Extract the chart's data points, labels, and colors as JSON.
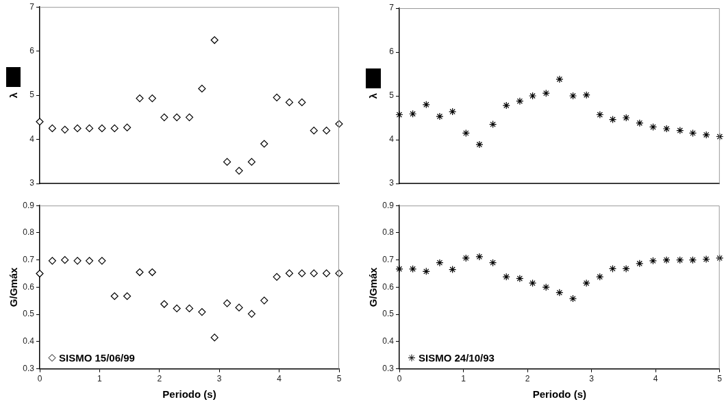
{
  "chart_data": [
    {
      "type": "scatter",
      "ylabel": "λ",
      "xlim": [
        0,
        5
      ],
      "xticks": [
        0,
        1,
        2,
        3,
        4,
        5
      ],
      "ylim": [
        3,
        7
      ],
      "yticks": [
        3,
        4,
        5,
        6,
        7
      ],
      "tick_labels": "y",
      "grid": false,
      "legend": false,
      "marker": "diamond",
      "series": [
        {
          "color": "#000000",
          "x": [
            0,
            0.21,
            0.42,
            0.63,
            0.83,
            1.04,
            1.25,
            1.46,
            1.67,
            1.88,
            2.08,
            2.29,
            2.5,
            2.71,
            2.92,
            3.13,
            3.33,
            3.54,
            3.75,
            3.96,
            4.17,
            4.38,
            4.58,
            4.79,
            5.0
          ],
          "values": [
            4.4,
            4.25,
            4.22,
            4.25,
            4.25,
            4.25,
            4.25,
            4.27,
            4.93,
            4.93,
            4.5,
            4.5,
            4.5,
            5.15,
            6.25,
            3.49,
            3.29,
            3.49,
            3.9,
            4.95,
            4.84,
            4.84,
            4.2,
            4.2,
            4.35
          ]
        }
      ]
    },
    {
      "type": "scatter",
      "ylabel": "λ",
      "xlim": [
        0,
        5
      ],
      "xticks": [
        0,
        1,
        2,
        3,
        4,
        5
      ],
      "ylim": [
        3,
        7
      ],
      "yticks": [
        3,
        4,
        5,
        6,
        7
      ],
      "tick_labels": "y",
      "grid": false,
      "legend": false,
      "marker": "cross",
      "series": [
        {
          "color": "#000000",
          "x": [
            0,
            0.21,
            0.42,
            0.63,
            0.83,
            1.04,
            1.25,
            1.46,
            1.67,
            1.88,
            2.08,
            2.29,
            2.5,
            2.71,
            2.92,
            3.13,
            3.33,
            3.54,
            3.75,
            3.96,
            4.17,
            4.38,
            4.58,
            4.79,
            5.0
          ],
          "values": [
            4.57,
            4.59,
            4.8,
            4.53,
            4.64,
            4.15,
            3.89,
            4.35,
            4.78,
            4.88,
            5.0,
            5.06,
            5.38,
            5.0,
            5.02,
            4.57,
            4.46,
            4.5,
            4.38,
            4.29,
            4.25,
            4.21,
            4.15,
            4.11,
            4.07
          ]
        }
      ]
    },
    {
      "type": "scatter",
      "xlabel": "Periodo (s)",
      "ylabel": "G/Gmáx",
      "xlim": [
        0,
        5
      ],
      "xticks": [
        0,
        1,
        2,
        3,
        4,
        5
      ],
      "ylim": [
        0.3,
        0.9
      ],
      "yticks": [
        0.3,
        0.4,
        0.5,
        0.6,
        0.7,
        0.8,
        0.9
      ],
      "grid": false,
      "legend": "bottom left",
      "marker": "diamond",
      "series": [
        {
          "name": "SISMO 15/06/99",
          "color": "#000000",
          "x": [
            0,
            0.21,
            0.42,
            0.63,
            0.83,
            1.04,
            1.25,
            1.46,
            1.67,
            1.88,
            2.08,
            2.29,
            2.5,
            2.71,
            2.92,
            3.13,
            3.33,
            3.54,
            3.75,
            3.96,
            4.17,
            4.38,
            4.58,
            4.79,
            5.0
          ],
          "values": [
            0.65,
            0.697,
            0.7,
            0.697,
            0.697,
            0.697,
            0.567,
            0.567,
            0.655,
            0.655,
            0.538,
            0.522,
            0.522,
            0.509,
            0.415,
            0.541,
            0.525,
            0.502,
            0.551,
            0.638,
            0.651,
            0.651,
            0.651,
            0.651,
            0.651
          ]
        }
      ]
    },
    {
      "type": "scatter",
      "xlabel": "Periodo (s)",
      "ylabel": "G/Gmáx",
      "xlim": [
        0,
        5
      ],
      "xticks": [
        0,
        1,
        2,
        3,
        4,
        5
      ],
      "ylim": [
        0.3,
        0.9
      ],
      "yticks": [
        0.3,
        0.4,
        0.5,
        0.6,
        0.7,
        0.8,
        0.9
      ],
      "grid": false,
      "legend": "bottom left",
      "marker": "cross",
      "series": [
        {
          "name": "SISMO 24/10/93",
          "color": "#000000",
          "x": [
            0,
            0.21,
            0.42,
            0.63,
            0.83,
            1.04,
            1.25,
            1.46,
            1.67,
            1.88,
            2.08,
            2.29,
            2.5,
            2.71,
            2.92,
            3.13,
            3.33,
            3.54,
            3.75,
            3.96,
            4.17,
            4.38,
            4.58,
            4.79,
            5.0
          ],
          "values": [
            0.667,
            0.667,
            0.658,
            0.69,
            0.665,
            0.707,
            0.712,
            0.69,
            0.638,
            0.632,
            0.615,
            0.6,
            0.58,
            0.558,
            0.615,
            0.638,
            0.668,
            0.668,
            0.687,
            0.697,
            0.7,
            0.7,
            0.7,
            0.703,
            0.707
          ]
        }
      ]
    }
  ]
}
